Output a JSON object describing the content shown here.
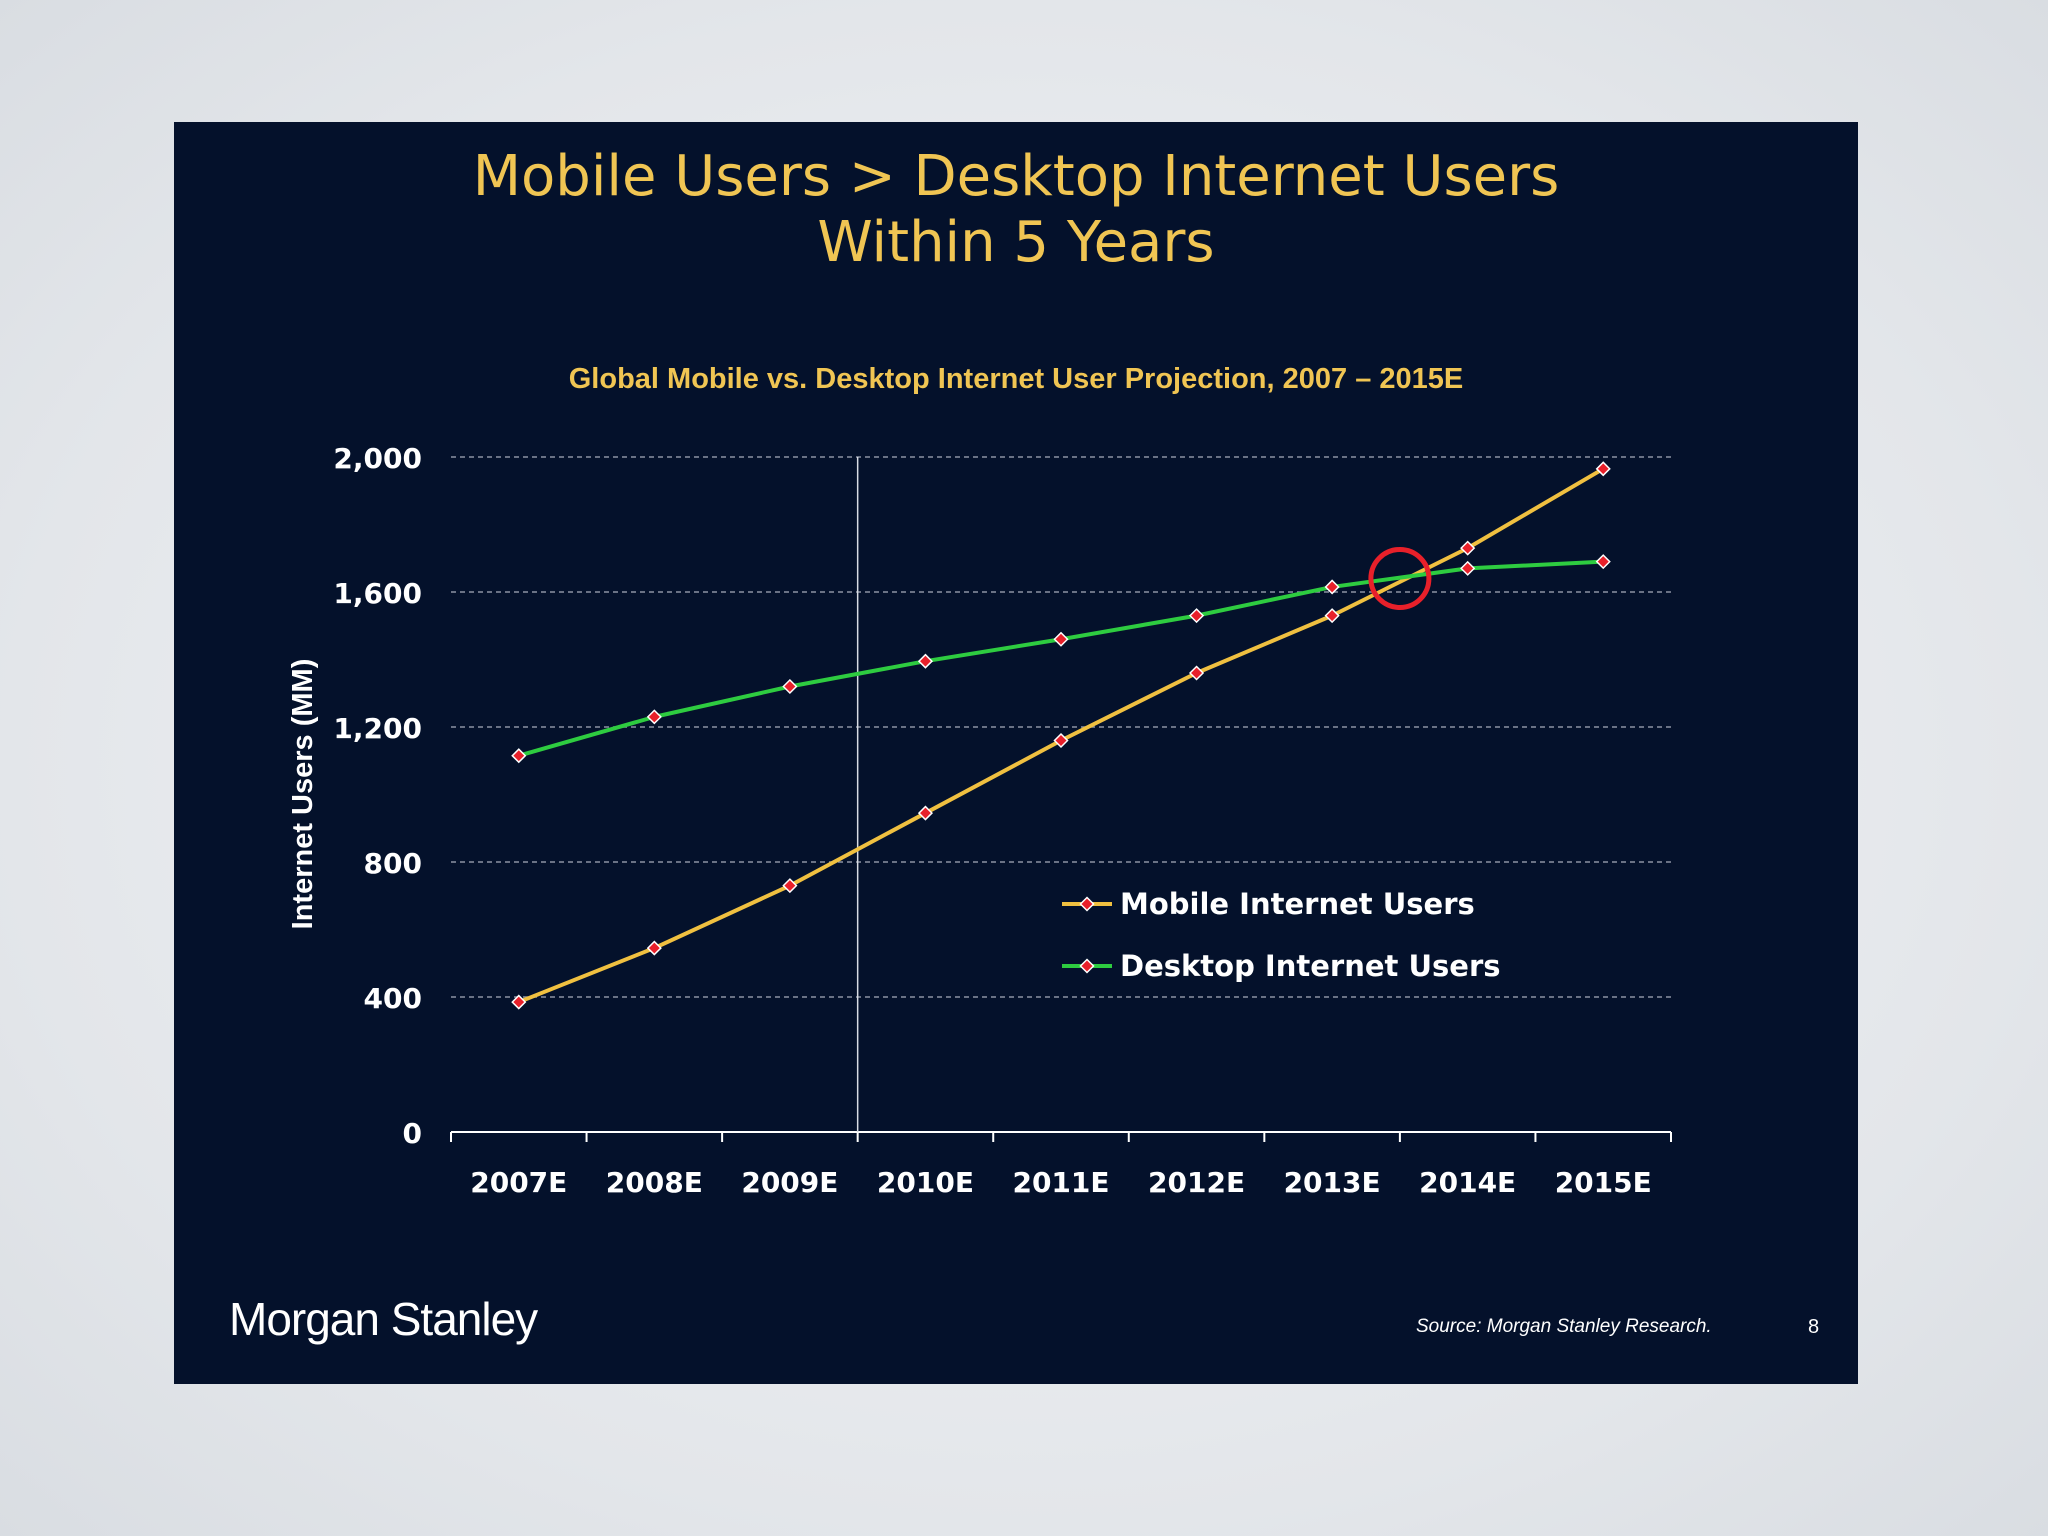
{
  "slide": {
    "title_line1": "Mobile Users > Desktop Internet Users",
    "title_line2": "Within 5 Years",
    "brand": "Morgan Stanley",
    "source": "Source: Morgan Stanley Research.",
    "page_number": "8"
  },
  "colors": {
    "background": "#04112b",
    "title": "#f0c553",
    "mobile": "#f0c040",
    "desktop": "#2ecc40",
    "marker": "#e8202a",
    "highlight_circle": "#e8202a"
  },
  "chart_data": {
    "type": "line",
    "title": "Global Mobile vs. Desktop Internet User Projection, 2007 – 2015E",
    "xlabel": "",
    "ylabel": "Internet Users (MM)",
    "categories": [
      "2007E",
      "2008E",
      "2009E",
      "2010E",
      "2011E",
      "2012E",
      "2013E",
      "2014E",
      "2015E"
    ],
    "ylim": [
      0,
      2000
    ],
    "yticks": [
      0,
      400,
      800,
      1200,
      1600,
      2000
    ],
    "ytick_labels": [
      "0",
      "400",
      "800",
      "1,200",
      "1,600",
      "2,000"
    ],
    "grid": true,
    "legend_position": "center-right",
    "series": [
      {
        "name": "Mobile Internet Users",
        "values": [
          385,
          545,
          730,
          945,
          1160,
          1360,
          1530,
          1730,
          1965
        ]
      },
      {
        "name": "Desktop Internet Users",
        "values": [
          1115,
          1230,
          1320,
          1395,
          1460,
          1530,
          1615,
          1670,
          1690
        ]
      }
    ],
    "annotations": {
      "crossover_circle_x": 6.5,
      "crossover_circle_y": 1640,
      "divider_after_category": 2
    }
  }
}
